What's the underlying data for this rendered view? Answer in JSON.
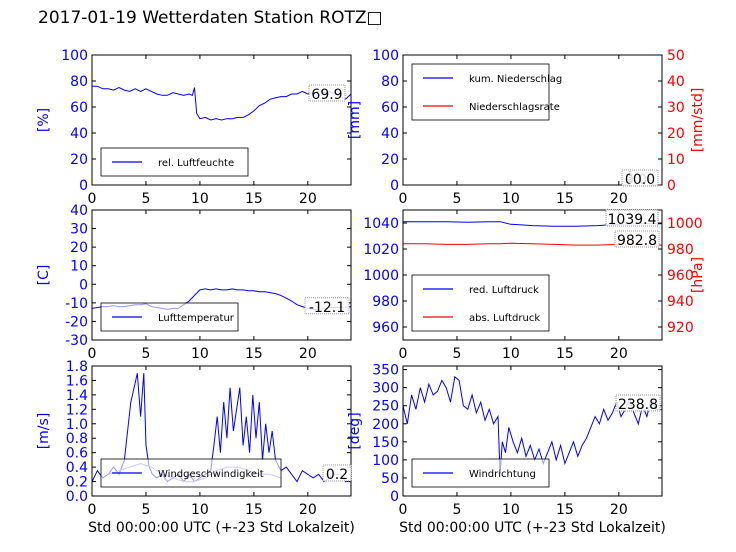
{
  "page": {
    "suptitle": "2017-01-19 Wetterdaten Station ROTZ□"
  },
  "colors": {
    "blue": "#0000ff",
    "red": "#ff0000",
    "black": "#000000",
    "band": "#8080ff"
  },
  "chart_data": [
    {
      "id": "humidity",
      "type": "line",
      "xlabel": "",
      "ylabel": "[%]",
      "xlim": [
        0,
        24
      ],
      "ylim": [
        0,
        100
      ],
      "xticks": [
        0,
        5,
        10,
        15,
        20
      ],
      "yticks": [
        0,
        20,
        40,
        60,
        80,
        100
      ],
      "legend": {
        "placement": "lower-left",
        "entries": [
          {
            "label": "rel. Luftfeuchte",
            "color": "#0000ff"
          }
        ]
      },
      "value_box": "69.9",
      "series": [
        {
          "name": "rel. Luftfeuchte",
          "color": "#0000ff",
          "x": [
            0,
            0.5,
            1,
            1.5,
            2,
            2.5,
            3,
            3.5,
            4,
            4.5,
            5,
            5.5,
            6,
            6.5,
            7,
            7.5,
            8,
            8.5,
            9,
            9.3,
            9.5,
            9.7,
            10,
            10.5,
            11,
            11.5,
            12,
            12.5,
            13,
            13.5,
            14,
            14.5,
            15,
            15.5,
            16,
            16.5,
            17,
            17.5,
            18,
            18.5,
            19,
            19.5,
            20,
            20.5,
            21,
            21.5,
            22,
            22.5,
            23,
            23.5,
            24
          ],
          "y": [
            76,
            76,
            74,
            74,
            73,
            75,
            73,
            72,
            74,
            72,
            74,
            72,
            70,
            69,
            69,
            71,
            70,
            69,
            70,
            69,
            75,
            55,
            51,
            52,
            50,
            51,
            50,
            51,
            51,
            52,
            52,
            54,
            57,
            61,
            63,
            66,
            67,
            68,
            68,
            70,
            70,
            72,
            70,
            71,
            72,
            71,
            72,
            70,
            68,
            66,
            70
          ]
        }
      ]
    },
    {
      "id": "precipitation",
      "type": "line",
      "xlabel": "",
      "ylabel": "[mm]",
      "ylabel_right": "[mm/std]",
      "xlim": [
        0,
        24
      ],
      "ylim": [
        0,
        100
      ],
      "ylim_right": [
        0,
        50
      ],
      "xticks": [
        0,
        5,
        10,
        15,
        20
      ],
      "yticks": [
        0,
        20,
        40,
        60,
        80,
        100
      ],
      "yticks_right": [
        0,
        10,
        20,
        30,
        40,
        50
      ],
      "legend": {
        "placement": "upper-left",
        "entries": [
          {
            "label": "kum. Niederschlag",
            "color": "#0000ff"
          },
          {
            "label": "Niederschlagsrate",
            "color": "#ff0000"
          }
        ]
      },
      "value_box": "0.0",
      "value_box_right": "0.0",
      "series": [
        {
          "name": "kum. Niederschlag",
          "color": "#0000ff",
          "axis": "left",
          "x": [
            0,
            24
          ],
          "y": [
            0,
            0
          ]
        },
        {
          "name": "Niederschlagsrate",
          "color": "#ff0000",
          "axis": "right",
          "x": [
            0,
            24
          ],
          "y": [
            0,
            0
          ]
        }
      ]
    },
    {
      "id": "temperature",
      "type": "line",
      "xlabel": "",
      "ylabel": "[C]",
      "xlim": [
        0,
        24
      ],
      "ylim": [
        -30,
        40
      ],
      "xticks": [
        0,
        5,
        10,
        15,
        20
      ],
      "yticks": [
        -30,
        -20,
        -10,
        0,
        10,
        20,
        30,
        40
      ],
      "legend": {
        "placement": "lower-left",
        "entries": [
          {
            "label": "Lufttemperatur",
            "color": "#0000ff"
          }
        ]
      },
      "value_box": "-12.1",
      "series": [
        {
          "name": "Lufttemperatur",
          "color": "#0000ff",
          "x": [
            0,
            0.5,
            1,
            1.5,
            2,
            2.5,
            3,
            3.5,
            4,
            4.5,
            5,
            5.5,
            6,
            6.5,
            7,
            7.5,
            8,
            8.5,
            9,
            9.5,
            10,
            10.5,
            11,
            11.5,
            12,
            12.5,
            13,
            13.5,
            14,
            14.5,
            15,
            15.5,
            16,
            16.5,
            17,
            17.5,
            18,
            18.5,
            19,
            19.5,
            20,
            20.5,
            21,
            21.5,
            22,
            22.5,
            23,
            23.5,
            24
          ],
          "y": [
            -13,
            -12.5,
            -12,
            -12,
            -11.5,
            -12,
            -12,
            -11.5,
            -11,
            -11,
            -10.5,
            -12,
            -12.5,
            -13,
            -13.5,
            -13,
            -13,
            -11,
            -9,
            -6,
            -3,
            -2.5,
            -3,
            -2.5,
            -3,
            -3,
            -2.5,
            -3,
            -3,
            -3.5,
            -3.5,
            -4,
            -4,
            -4.5,
            -5,
            -6,
            -7.5,
            -9,
            -11,
            -12,
            -13,
            -13.5,
            -13.5,
            -13,
            -12.5,
            -12.5,
            -12.5,
            -12.3,
            -12.1
          ]
        }
      ]
    },
    {
      "id": "pressure",
      "type": "line",
      "xlabel": "",
      "ylabel": "",
      "ylabel_right": "[hPa]",
      "xlim": [
        0,
        24
      ],
      "ylim": [
        950,
        1050
      ],
      "ylim_right": [
        910,
        1010
      ],
      "xticks": [
        0,
        5,
        10,
        15,
        20
      ],
      "yticks": [
        960,
        980,
        1000,
        1020,
        1040
      ],
      "yticks_right": [
        920,
        940,
        960,
        980,
        1000
      ],
      "legend": {
        "placement": "lower-left",
        "entries": [
          {
            "label": "red. Luftdruck",
            "color": "#0000ff"
          },
          {
            "label": "abs. Luftdruck",
            "color": "#ff0000"
          }
        ]
      },
      "value_box": "1039.4",
      "value_box_right": "982.8",
      "series": [
        {
          "name": "red. Luftdruck",
          "color": "#0000ff",
          "axis": "left",
          "x": [
            0,
            2,
            4,
            6,
            8,
            9,
            10,
            11,
            12,
            14,
            16,
            18,
            20,
            22,
            24
          ],
          "y": [
            1041,
            1041,
            1041,
            1040.5,
            1041,
            1041,
            1039,
            1038.5,
            1038,
            1037.5,
            1037.5,
            1038,
            1039,
            1039.5,
            1039.4
          ]
        },
        {
          "name": "abs. Luftdruck",
          "color": "#ff0000",
          "axis": "left",
          "x": [
            0,
            2,
            4,
            6,
            8,
            9,
            10,
            12,
            14,
            16,
            18,
            20,
            22,
            24
          ],
          "y": [
            1024,
            1024,
            1023.5,
            1023.5,
            1024,
            1024,
            1024.5,
            1024,
            1023.5,
            1023,
            1023,
            1023.5,
            1024,
            1023
          ]
        }
      ]
    },
    {
      "id": "windspeed",
      "type": "line",
      "xlabel": "Std 00:00:00 UTC (+-23 Std Lokalzeit)",
      "ylabel": "[m/s]",
      "xlim": [
        0,
        24
      ],
      "ylim": [
        0,
        1.8
      ],
      "xticks": [
        0,
        5,
        10,
        15,
        20
      ],
      "yticks": [
        0.0,
        0.2,
        0.4,
        0.6,
        0.8,
        1.0,
        1.2,
        1.4,
        1.6,
        1.8
      ],
      "legend": {
        "placement": "lower-left",
        "entries": [
          {
            "label": "Windgeschwindigkeit",
            "color": "#0000ff"
          }
        ]
      },
      "value_box": "0.2",
      "series": [
        {
          "name": "Windgeschwindigkeit",
          "color": "#0000ff",
          "x": [
            0,
            0.5,
            1,
            1.5,
            2,
            2.5,
            3,
            3.3,
            3.6,
            3.9,
            4.2,
            4.5,
            4.8,
            5,
            5.3,
            5.6,
            6,
            6.5,
            7,
            7.5,
            8,
            8.5,
            9,
            9.5,
            10,
            10.5,
            11,
            11.3,
            11.6,
            11.9,
            12.2,
            12.5,
            12.8,
            13.1,
            13.4,
            13.7,
            14,
            14.3,
            14.6,
            14.9,
            15.2,
            15.5,
            15.8,
            16.1,
            16.4,
            16.7,
            17,
            17.5,
            18,
            18.5,
            19,
            19.5,
            20,
            20.5,
            21,
            21.5,
            22,
            22.5,
            23,
            23.5,
            24
          ],
          "y": [
            0.2,
            0.35,
            0.25,
            0.3,
            0.4,
            0.3,
            0.5,
            0.9,
            1.3,
            1.5,
            1.7,
            1.1,
            1.7,
            0.7,
            0.4,
            0.3,
            0.25,
            0.3,
            0.2,
            0.25,
            0.3,
            0.2,
            0.3,
            0.2,
            0.25,
            0.3,
            0.35,
            0.7,
            1.1,
            0.6,
            1.3,
            0.8,
            1.5,
            0.9,
            1.2,
            1.5,
            0.7,
            1.1,
            0.6,
            1.4,
            0.8,
            1.3,
            0.5,
            1.0,
            0.6,
            0.9,
            0.5,
            0.35,
            0.4,
            0.3,
            0.2,
            0.35,
            0.3,
            0.25,
            0.3,
            0.2,
            0.25,
            0.3,
            0.3,
            0.2,
            0.2
          ]
        },
        {
          "name": "",
          "color": "#8080ff",
          "x": [
            1.5,
            2.5,
            3.5,
            4.5,
            5.5,
            6.5,
            7.5,
            8.5,
            9.5,
            10.5,
            11.5,
            12.5,
            13.5,
            14.5,
            15.5,
            16.5,
            17.5
          ],
          "y": [
            0.3,
            0.35,
            0.4,
            0.45,
            0.4,
            0.3,
            0.25,
            0.2,
            0.2,
            0.25,
            0.35,
            0.4,
            0.4,
            0.35,
            0.3,
            0.3,
            0.25
          ]
        }
      ]
    },
    {
      "id": "winddirection",
      "type": "line",
      "xlabel": "Std 00:00:00 UTC (+-23 Std Lokalzeit)",
      "ylabel": "[deg]",
      "xlim": [
        0,
        24
      ],
      "ylim": [
        0,
        360
      ],
      "xticks": [
        0,
        5,
        10,
        15,
        20
      ],
      "yticks": [
        0,
        50,
        100,
        150,
        200,
        250,
        300,
        350
      ],
      "legend": {
        "placement": "lower-left",
        "entries": [
          {
            "label": "Windrichtung",
            "color": "#0000ff"
          }
        ]
      },
      "value_box": "238.8",
      "series": [
        {
          "name": "Windrichtung",
          "color": "#0000ff",
          "x": [
            0,
            0.4,
            0.8,
            1.2,
            1.6,
            2,
            2.4,
            2.8,
            3.2,
            3.6,
            4,
            4.4,
            4.8,
            5.2,
            5.6,
            6,
            6.4,
            6.8,
            7.2,
            7.6,
            8,
            8.4,
            8.8,
            9,
            9.2,
            9.5,
            9.8,
            10.2,
            10.6,
            11,
            11.4,
            11.8,
            12.2,
            12.6,
            13,
            13.4,
            13.8,
            14.2,
            14.6,
            15,
            15.4,
            15.8,
            16.2,
            16.6,
            17,
            17.4,
            17.8,
            18.2,
            18.6,
            19,
            19.4,
            19.8,
            20.2,
            20.6,
            21,
            21.4,
            21.8,
            22.2,
            22.6,
            23,
            23.4,
            24
          ],
          "y": [
            250,
            200,
            280,
            240,
            300,
            260,
            310,
            280,
            290,
            320,
            300,
            260,
            330,
            320,
            250,
            240,
            280,
            230,
            260,
            210,
            240,
            200,
            220,
            60,
            150,
            120,
            190,
            150,
            120,
            160,
            110,
            140,
            100,
            130,
            90,
            120,
            150,
            100,
            140,
            90,
            120,
            150,
            110,
            140,
            160,
            190,
            220,
            200,
            240,
            210,
            230,
            260,
            220,
            240,
            270,
            230,
            200,
            250,
            220,
            270,
            240,
            239
          ]
        }
      ]
    }
  ]
}
